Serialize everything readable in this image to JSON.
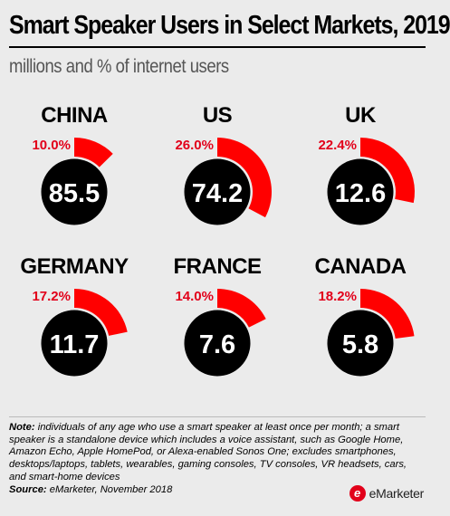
{
  "title": "Smart Speaker Users in Select Markets, 2019",
  "subtitle": "millions and % of internet users",
  "chart_data": {
    "type": "radial-gauge",
    "title": "Smart Speaker Users in Select Markets, 2019",
    "subtitle": "millions and % of internet users",
    "markets": [
      {
        "name": "CHINA",
        "users_millions": "85.5",
        "pct_internet_users": 10.0,
        "pct_label": "10.0%"
      },
      {
        "name": "US",
        "users_millions": "74.2",
        "pct_internet_users": 26.0,
        "pct_label": "26.0%"
      },
      {
        "name": "UK",
        "users_millions": "12.6",
        "pct_internet_users": 22.4,
        "pct_label": "22.4%"
      },
      {
        "name": "GERMANY",
        "users_millions": "11.7",
        "pct_internet_users": 17.2,
        "pct_label": "17.2%"
      },
      {
        "name": "FRANCE",
        "users_millions": "7.6",
        "pct_internet_users": 14.0,
        "pct_label": "14.0%"
      },
      {
        "name": "CANADA",
        "users_millions": "5.8",
        "pct_internet_users": 18.2,
        "pct_label": "18.2%"
      }
    ],
    "colors": {
      "arc": "#ff0000",
      "circle": "#000000",
      "value_text": "#ffffff",
      "pct_text": "#e2001a",
      "name_text": "#000000"
    }
  },
  "notes": {
    "note_label": "Note:",
    "note_text": " individuals of any age who use a smart speaker at least once per month; a smart speaker is a standalone device which includes a voice assistant, such as Google Home, Amazon Echo, Apple HomePod, or Alexa-enabled Sonos One; excludes smartphones, desktops/laptops, tablets, wearables, gaming consoles, TV consoles, VR headsets, cars, and smart-home devices",
    "source_label": "Source:",
    "source_text": " eMarketer, November 2018"
  },
  "brand": {
    "logo_letter": "e",
    "name": "eMarketer",
    "color": "#e2001a"
  }
}
